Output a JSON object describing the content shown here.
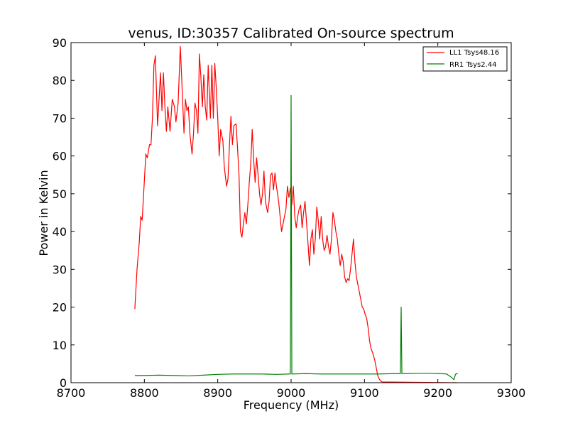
{
  "chart_data": {
    "type": "line",
    "title": "venus, ID:30357 Calibrated On-source spectrum",
    "xlabel": "Frequency (MHz)",
    "ylabel": "Power in Kelvin",
    "xlim": [
      8700,
      9300
    ],
    "ylim": [
      0,
      90
    ],
    "xticks": [
      8700,
      8800,
      8900,
      9000,
      9100,
      9200,
      9300
    ],
    "yticks": [
      0,
      10,
      20,
      30,
      40,
      50,
      60,
      70,
      80,
      90
    ],
    "grid": false,
    "legend_position": "top-right",
    "series": [
      {
        "name": "LL1 Tsys48.16",
        "color": "#ff0000",
        "points": [
          [
            8787,
            19.5
          ],
          [
            8790,
            30
          ],
          [
            8793,
            37
          ],
          [
            8795,
            44
          ],
          [
            8797,
            43
          ],
          [
            8799,
            50
          ],
          [
            8802,
            60.5
          ],
          [
            8804,
            59.5
          ],
          [
            8807,
            63
          ],
          [
            8809,
            63
          ],
          [
            8811,
            70
          ],
          [
            8813,
            84
          ],
          [
            8815,
            86.5
          ],
          [
            8818,
            68
          ],
          [
            8820,
            75
          ],
          [
            8822,
            82
          ],
          [
            8824,
            72
          ],
          [
            8826,
            82
          ],
          [
            8828,
            73
          ],
          [
            8830,
            66.5
          ],
          [
            8832,
            73
          ],
          [
            8835,
            66.5
          ],
          [
            8838,
            75
          ],
          [
            8841,
            73
          ],
          [
            8843,
            69
          ],
          [
            8846,
            74
          ],
          [
            8849,
            89
          ],
          [
            8851,
            80
          ],
          [
            8854,
            66
          ],
          [
            8856,
            75
          ],
          [
            8858,
            72
          ],
          [
            8860,
            73
          ],
          [
            8862,
            66
          ],
          [
            8865,
            60.5
          ],
          [
            8867,
            66
          ],
          [
            8869,
            74
          ],
          [
            8871,
            72
          ],
          [
            8873,
            66
          ],
          [
            8875,
            87
          ],
          [
            8877,
            81
          ],
          [
            8879,
            73
          ],
          [
            8881,
            81.5
          ],
          [
            8883,
            73
          ],
          [
            8885,
            69.5
          ],
          [
            8887,
            84
          ],
          [
            8890,
            70
          ],
          [
            8892,
            84
          ],
          [
            8894,
            70
          ],
          [
            8896,
            84.5
          ],
          [
            8898,
            78
          ],
          [
            8900,
            70
          ],
          [
            8902,
            60
          ],
          [
            8904,
            67
          ],
          [
            8907,
            64
          ],
          [
            8909,
            57
          ],
          [
            8912,
            52
          ],
          [
            8914,
            54
          ],
          [
            8916,
            63
          ],
          [
            8918,
            70.5
          ],
          [
            8920,
            63
          ],
          [
            8922,
            68
          ],
          [
            8925,
            68.5
          ],
          [
            8927,
            62
          ],
          [
            8929,
            55
          ],
          [
            8931,
            40
          ],
          [
            8933,
            38.5
          ],
          [
            8935,
            42
          ],
          [
            8937,
            45
          ],
          [
            8939,
            42
          ],
          [
            8941,
            47
          ],
          [
            8943,
            53
          ],
          [
            8945,
            58
          ],
          [
            8947,
            67
          ],
          [
            8949,
            59
          ],
          [
            8951,
            53
          ],
          [
            8953,
            59.5
          ],
          [
            8955,
            55
          ],
          [
            8957,
            50
          ],
          [
            8959,
            47
          ],
          [
            8961,
            50
          ],
          [
            8963,
            56
          ],
          [
            8965,
            48
          ],
          [
            8968,
            45
          ],
          [
            8970,
            48
          ],
          [
            8972,
            55
          ],
          [
            8974,
            55.5
          ],
          [
            8976,
            51
          ],
          [
            8978,
            55.5
          ],
          [
            8980,
            52
          ],
          [
            8983,
            48
          ],
          [
            8985,
            44
          ],
          [
            8987,
            40
          ],
          [
            8990,
            43
          ],
          [
            8993,
            46
          ],
          [
            8995,
            52
          ],
          [
            8997,
            49
          ],
          [
            8999,
            51.5
          ],
          [
            9001,
            47
          ],
          [
            9003,
            52
          ],
          [
            9005,
            44
          ],
          [
            9007,
            41
          ],
          [
            9009,
            44
          ],
          [
            9011,
            46
          ],
          [
            9013,
            47
          ],
          [
            9015,
            41
          ],
          [
            9017,
            45
          ],
          [
            9019,
            48
          ],
          [
            9021,
            42.5
          ],
          [
            9023,
            37
          ],
          [
            9025,
            31
          ],
          [
            9027,
            38
          ],
          [
            9029,
            40.5
          ],
          [
            9031,
            34
          ],
          [
            9033,
            38
          ],
          [
            9035,
            46.5
          ],
          [
            9037,
            43
          ],
          [
            9039,
            38
          ],
          [
            9041,
            44
          ],
          [
            9043,
            38
          ],
          [
            9045,
            35
          ],
          [
            9047,
            36
          ],
          [
            9049,
            39
          ],
          [
            9051,
            36
          ],
          [
            9053,
            34
          ],
          [
            9055,
            38
          ],
          [
            9057,
            45
          ],
          [
            9059,
            43
          ],
          [
            9061,
            40
          ],
          [
            9063,
            38
          ],
          [
            9065,
            34
          ],
          [
            9067,
            31
          ],
          [
            9069,
            34
          ],
          [
            9071,
            32
          ],
          [
            9073,
            28
          ],
          [
            9075,
            26.5
          ],
          [
            9077,
            27.5
          ],
          [
            9079,
            27
          ],
          [
            9081,
            30
          ],
          [
            9083,
            34
          ],
          [
            9085,
            38
          ],
          [
            9087,
            32
          ],
          [
            9089,
            28
          ],
          [
            9091,
            26
          ],
          [
            9093,
            24
          ],
          [
            9095,
            22
          ],
          [
            9097,
            20
          ],
          [
            9099,
            19.5
          ],
          [
            9101,
            18
          ],
          [
            9103,
            17
          ],
          [
            9105,
            14.5
          ],
          [
            9107,
            11
          ],
          [
            9109,
            9
          ],
          [
            9111,
            8
          ],
          [
            9114,
            6
          ],
          [
            9116,
            4
          ],
          [
            9118,
            2
          ],
          [
            9120,
            1
          ],
          [
            9122,
            0.5
          ],
          [
            9124,
            0.2
          ],
          [
            9226,
            0
          ]
        ]
      },
      {
        "name": "RR1 Tsys2.44",
        "color": "#008000",
        "points": [
          [
            8787,
            1.9
          ],
          [
            8800,
            1.9
          ],
          [
            8820,
            2.0
          ],
          [
            8840,
            1.9
          ],
          [
            8860,
            1.8
          ],
          [
            8880,
            2.0
          ],
          [
            8900,
            2.2
          ],
          [
            8920,
            2.3
          ],
          [
            8940,
            2.3
          ],
          [
            8960,
            2.3
          ],
          [
            8980,
            2.2
          ],
          [
            8998,
            2.3
          ],
          [
            8999,
            2.3
          ],
          [
            9000,
            76
          ],
          [
            9001,
            2.3
          ],
          [
            9020,
            2.4
          ],
          [
            9040,
            2.3
          ],
          [
            9060,
            2.3
          ],
          [
            9080,
            2.3
          ],
          [
            9100,
            2.3
          ],
          [
            9120,
            2.3
          ],
          [
            9140,
            2.4
          ],
          [
            9149,
            2.4
          ],
          [
            9150,
            20
          ],
          [
            9151,
            2.4
          ],
          [
            9170,
            2.5
          ],
          [
            9190,
            2.5
          ],
          [
            9205,
            2.4
          ],
          [
            9212,
            2.3
          ],
          [
            9218,
            1.5
          ],
          [
            9222,
            0.8
          ],
          [
            9224,
            2.2
          ],
          [
            9227,
            2.5
          ]
        ]
      }
    ]
  }
}
